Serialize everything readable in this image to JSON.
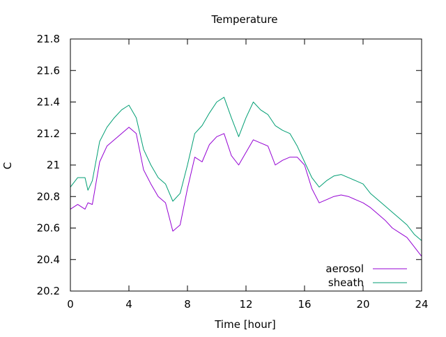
{
  "chart_data": {
    "type": "line",
    "title": "Temperature",
    "xlabel": "Time [hour]",
    "ylabel": "C",
    "xlim": [
      0,
      24
    ],
    "ylim": [
      20.2,
      21.8
    ],
    "xticks": [
      0,
      4,
      8,
      12,
      16,
      20,
      24
    ],
    "xtick_labels": [
      "0",
      "4",
      "8",
      "12",
      "16",
      "20",
      "24"
    ],
    "yticks": [
      20.2,
      20.4,
      20.6,
      20.8,
      21.0,
      21.2,
      21.4,
      21.6,
      21.8
    ],
    "ytick_labels": [
      "20.2",
      "20.4",
      "20.6",
      "20.8",
      "21",
      "21.2",
      "21.4",
      "21.6",
      "21.8"
    ],
    "grid": false,
    "legend_position": "bottom-right",
    "series": [
      {
        "name": "aerosol",
        "color": "#9400d3",
        "x": [
          0,
          0.5,
          1,
          1.2,
          1.5,
          2,
          2.5,
          3,
          3.5,
          4,
          4.5,
          5,
          5.5,
          6,
          6.5,
          7,
          7.5,
          8,
          8.5,
          9,
          9.5,
          10,
          10.5,
          11,
          11.5,
          12,
          12.5,
          13,
          13.5,
          14,
          14.5,
          15,
          15.5,
          16,
          16.5,
          17,
          17.5,
          18,
          18.5,
          19,
          19.5,
          20,
          20.5,
          21,
          21.5,
          22,
          22.5,
          23,
          23.5,
          24
        ],
        "y": [
          20.72,
          20.75,
          20.72,
          20.76,
          20.75,
          21.02,
          21.12,
          21.16,
          21.2,
          21.24,
          21.2,
          20.97,
          20.88,
          20.8,
          20.76,
          20.58,
          20.62,
          20.85,
          21.05,
          21.02,
          21.13,
          21.18,
          21.2,
          21.06,
          21.0,
          21.08,
          21.16,
          21.14,
          21.12,
          21.0,
          21.03,
          21.05,
          21.05,
          21.0,
          20.85,
          20.76,
          20.78,
          20.8,
          20.81,
          20.8,
          20.78,
          20.76,
          20.73,
          20.69,
          20.65,
          20.6,
          20.57,
          20.54,
          20.48,
          20.42
        ]
      },
      {
        "name": "sheath",
        "color": "#009e73",
        "x": [
          0,
          0.5,
          1,
          1.2,
          1.5,
          2,
          2.5,
          3,
          3.5,
          4,
          4.5,
          5,
          5.5,
          6,
          6.5,
          7,
          7.5,
          8,
          8.5,
          9,
          9.5,
          10,
          10.5,
          11,
          11.5,
          12,
          12.5,
          13,
          13.5,
          14,
          14.5,
          15,
          15.5,
          16,
          16.5,
          17,
          17.5,
          18,
          18.5,
          19,
          19.5,
          20,
          20.5,
          21,
          21.5,
          22,
          22.5,
          23,
          23.5,
          24
        ],
        "y": [
          20.86,
          20.92,
          20.92,
          20.84,
          20.9,
          21.15,
          21.24,
          21.3,
          21.35,
          21.38,
          21.3,
          21.1,
          21.0,
          20.92,
          20.88,
          20.77,
          20.82,
          21.0,
          21.2,
          21.25,
          21.33,
          21.4,
          21.43,
          21.3,
          21.18,
          21.3,
          21.4,
          21.35,
          21.32,
          21.25,
          21.22,
          21.2,
          21.12,
          21.02,
          20.92,
          20.86,
          20.9,
          20.93,
          20.94,
          20.92,
          20.9,
          20.88,
          20.82,
          20.78,
          20.74,
          20.7,
          20.66,
          20.62,
          20.56,
          20.52
        ]
      }
    ]
  }
}
